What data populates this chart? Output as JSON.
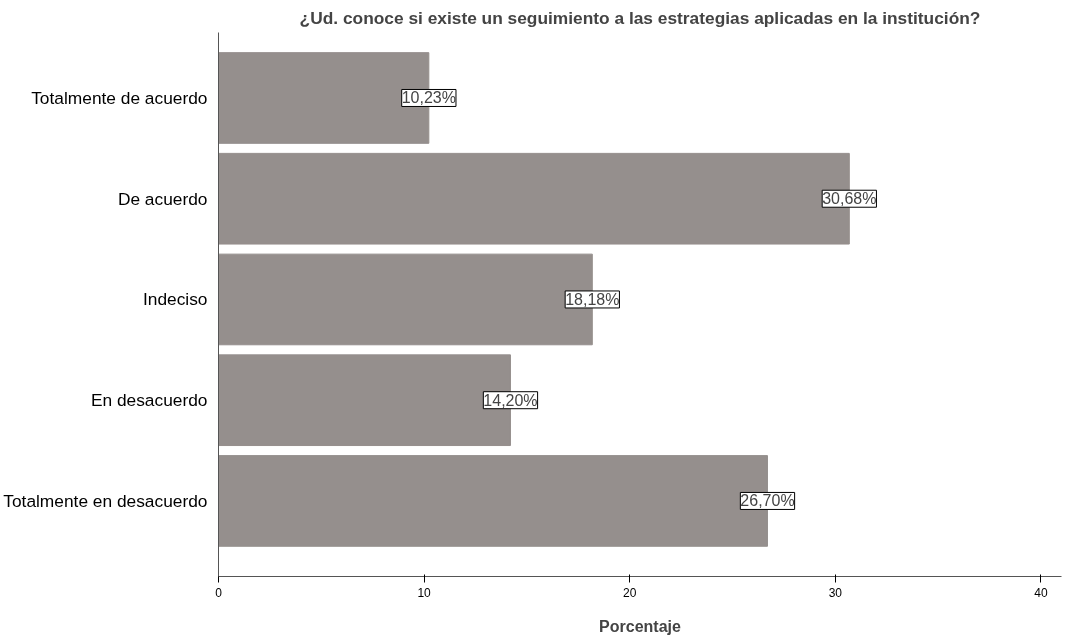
{
  "chart_data": {
    "type": "bar",
    "orientation": "horizontal",
    "title": "¿Ud. conoce si existe un seguimiento a las estrategias aplicadas en la institución?",
    "xlabel": "Porcentaje",
    "categories": [
      "Totalmente de acuerdo",
      "De acuerdo",
      "Indeciso",
      "En desacuerdo",
      "Totalmente en desacuerdo"
    ],
    "values": [
      10.23,
      30.68,
      18.18,
      14.2,
      26.7
    ],
    "value_labels": [
      "10,23%",
      "30,68%",
      "18,18%",
      "14,20%",
      "26,70%"
    ],
    "color": "#958f8d",
    "xlim": [
      0,
      41
    ],
    "xticks": [
      0,
      10,
      20,
      30,
      40
    ],
    "grid": false
  }
}
